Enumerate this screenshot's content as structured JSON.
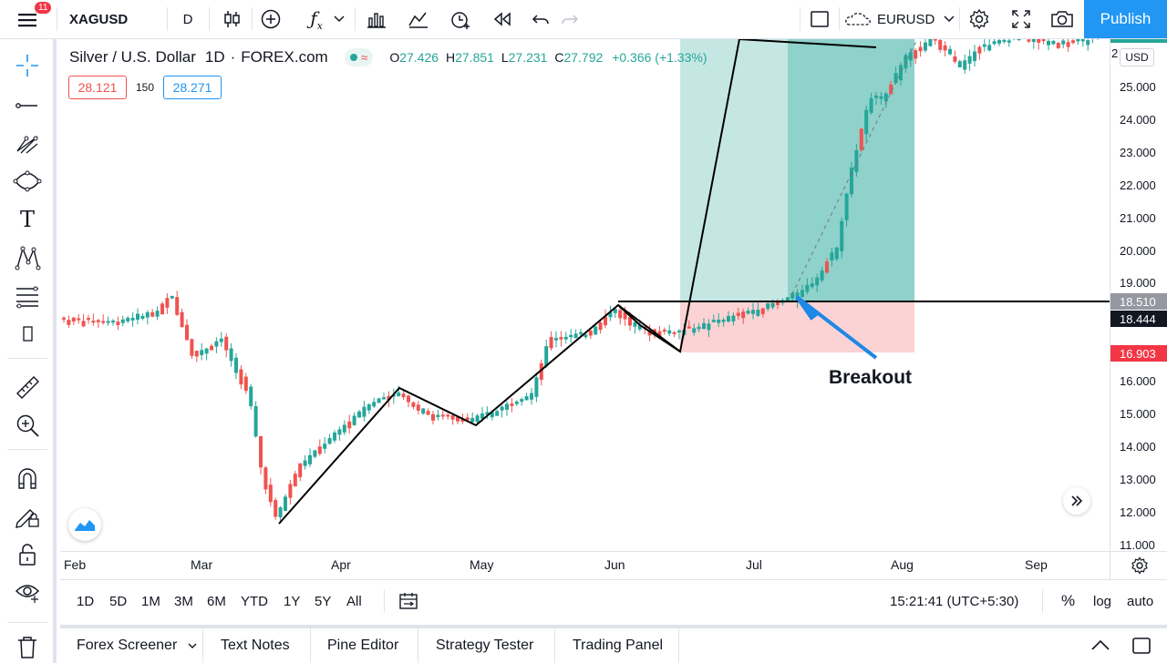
{
  "topbar": {
    "menu_badge": "11",
    "symbol": "XAGUSD",
    "interval": "D",
    "compare_symbol": "EURUSD",
    "publish_label": "Publish"
  },
  "legend": {
    "title": "Silver / U.S. Dollar",
    "interval": "1D",
    "exchange": "FOREX.com",
    "o_label": "O",
    "o_value": "27.426",
    "h_label": "H",
    "h_value": "27.851",
    "l_label": "L",
    "l_value": "27.231",
    "c_label": "C",
    "c_value": "27.792",
    "change": "+0.366 (+1.33%)",
    "bid": "28.121",
    "spread": "150",
    "ask": "28.271"
  },
  "annotation": {
    "breakout_label": "Breakout"
  },
  "price_axis": {
    "currency": "USD",
    "ticks": [
      "25.000",
      "24.000",
      "23.000",
      "22.000",
      "21.000",
      "20.000",
      "19.000",
      "16.000",
      "15.000",
      "14.000",
      "13.000",
      "12.000",
      "11.000"
    ],
    "tick_values": [
      25,
      24,
      23,
      22,
      21,
      20,
      19,
      16,
      15,
      14,
      13,
      12,
      11
    ],
    "label_top_partial": "2",
    "label_resistance": "18.510",
    "label_current": "18.444",
    "label_stop": "16.903"
  },
  "time_axis": {
    "ticks": [
      "Feb",
      "Mar",
      "Apr",
      "May",
      "Jun",
      "Jul",
      "Aug",
      "Sep"
    ]
  },
  "ranges": {
    "items": [
      "1D",
      "5D",
      "1M",
      "3M",
      "6M",
      "YTD",
      "1Y",
      "5Y",
      "All"
    ],
    "clock": "15:21:41 (UTC+5:30)",
    "percent": "%",
    "log": "log",
    "auto": "auto"
  },
  "tabs": {
    "items": [
      "Forex Screener",
      "Text Notes",
      "Pine Editor",
      "Strategy Tester",
      "Trading Panel"
    ]
  },
  "colors": {
    "up": "#26a69a",
    "down": "#ef5350",
    "accent": "#2196f3",
    "profit_zone": "#b2dfdb",
    "loss_zone": "#fccbcd"
  },
  "icons": {
    "left": [
      "crosshair-icon",
      "trend-line-icon",
      "pitchfork-icon",
      "shapes-icon",
      "text-icon",
      "pattern-icon",
      "fib-icon",
      "more-icon",
      "ruler-icon",
      "zoom-in-icon",
      "magnet-icon",
      "lock-drawings-icon",
      "lock-icon",
      "eye-icon",
      "trash-icon"
    ]
  }
}
